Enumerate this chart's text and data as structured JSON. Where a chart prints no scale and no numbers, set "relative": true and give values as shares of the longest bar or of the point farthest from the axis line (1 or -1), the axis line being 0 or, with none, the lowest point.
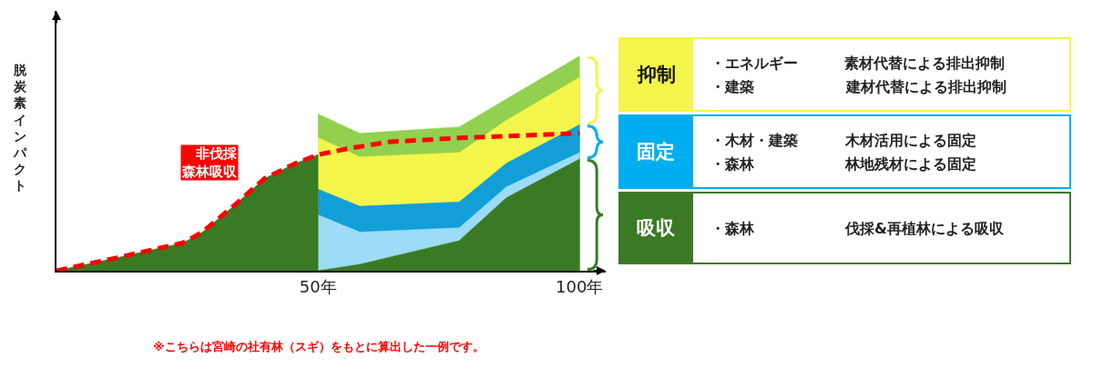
{
  "chart_data": [
    {
      "type": "area",
      "ylabel": "脱炭素インパクト",
      "relative": true,
      "legend": false,
      "marker": "none",
      "xlim": [
        0,
        105
      ],
      "xticks": [
        {
          "value": 50,
          "label": "50年"
        },
        {
          "value": 100,
          "label": "100年"
        }
      ],
      "x": [
        50,
        58,
        77,
        86,
        100
      ],
      "series": [
        {
          "color": "#92d050",
          "values": [
            0.73,
            0.64,
            0.67,
            0.8,
            1
          ]
        },
        {
          "color": "#f4f54b",
          "values": [
            0.62,
            0.53,
            0.55,
            0.7,
            0.9
          ]
        },
        {
          "color": "#129fd8",
          "values": [
            0.38,
            0.3,
            0.32,
            0.5,
            0.68
          ]
        },
        {
          "color": "#9ddcf6",
          "values": [
            0.26,
            0.18,
            0.2,
            0.39,
            0.55
          ]
        },
        {
          "color": "#3b7a24",
          "x": [
            0,
            11.5,
            24.2,
            27.9,
            33.8,
            39.8,
            45.7,
            50,
            50,
            58,
            77,
            86,
            100
          ],
          "values": [
            0,
            0.06,
            0.13,
            0.18,
            0.3,
            0.43,
            0.5,
            0.54,
            0,
            0.03,
            0.14,
            0.34,
            0.52
          ]
        },
        {
          "type": "line",
          "line_style": "dashed",
          "name": "非伐採森林吸収",
          "color": "#ff0000",
          "x": [
            0,
            11.5,
            24.2,
            27.9,
            33.8,
            39.8,
            45.7,
            50,
            56,
            63.6,
            78.4,
            100
          ],
          "values": [
            0,
            0.06,
            0.13,
            0.18,
            0.3,
            0.43,
            0.5,
            0.54,
            0.57,
            0.6,
            0.62,
            0.64
          ]
        }
      ],
      "annotations": [
        "※こちらは宮崎の社有林（スギ）をもとに算出した一例です。"
      ]
    },
    {
      "type": "other",
      "title": "抑制",
      "colors": [
        "#f4f54b"
      ],
      "annotations": [
        "・エネルギー",
        "素材代替による排出抑制",
        "・建築",
        "建材代替による排出抑制"
      ]
    },
    {
      "type": "other",
      "title": "固定",
      "colors": [
        "#00aeef"
      ],
      "annotations": [
        "・木材・建築",
        "木材活用による固定",
        "・森林",
        "林地残材による固定"
      ]
    },
    {
      "type": "other",
      "title": "吸収",
      "colors": [
        "#3b7a24"
      ],
      "annotations": [
        "・森林",
        "伐採&再植林による吸収"
      ]
    }
  ]
}
